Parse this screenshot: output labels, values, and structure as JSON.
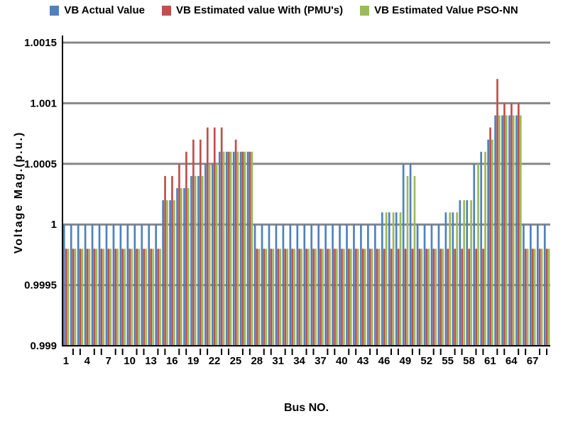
{
  "chart_data": {
    "type": "bar",
    "title": "",
    "xlabel": "Bus NO.",
    "ylabel": "Voltage Mag.(p.u.)",
    "ylim": [
      0.999,
      1.0015
    ],
    "yticks": [
      0.999,
      0.9995,
      1,
      1.0005,
      1.001,
      1.0015
    ],
    "ytick_labels": [
      "0.999",
      "0.9995",
      "1",
      "1.0005",
      "1.001",
      "1.0015"
    ],
    "x_label_every": 3,
    "grid": true,
    "legend_position": "top",
    "categories": [
      1,
      2,
      3,
      4,
      5,
      6,
      7,
      8,
      9,
      10,
      11,
      12,
      13,
      14,
      15,
      16,
      17,
      18,
      19,
      20,
      21,
      22,
      23,
      24,
      25,
      26,
      27,
      28,
      29,
      30,
      31,
      32,
      33,
      34,
      35,
      36,
      37,
      38,
      39,
      40,
      41,
      42,
      43,
      44,
      45,
      46,
      47,
      48,
      49,
      50,
      51,
      52,
      53,
      54,
      55,
      56,
      57,
      58,
      59,
      60,
      61,
      62,
      63,
      64,
      65,
      66,
      67,
      68,
      69
    ],
    "series": [
      {
        "name": "VB Actual Value",
        "color": "#4f81bd",
        "values": [
          1.0,
          1.0,
          1.0,
          1.0,
          1.0,
          1.0,
          1.0,
          1.0,
          1.0,
          1.0,
          1.0,
          1.0,
          1.0,
          1.0,
          1.0002,
          1.0002,
          1.0003,
          1.0003,
          1.0004,
          1.0004,
          1.0005,
          1.0005,
          1.0006,
          1.0006,
          1.0006,
          1.0006,
          1.0006,
          1.0,
          1.0,
          1.0,
          1.0,
          1.0,
          1.0,
          1.0,
          1.0,
          1.0,
          1.0,
          1.0,
          1.0,
          1.0,
          1.0,
          1.0,
          1.0,
          1.0,
          1.0,
          1.0001,
          1.0001,
          1.0001,
          1.0005,
          1.0005,
          1.0,
          1.0,
          1.0,
          1.0,
          1.0001,
          1.0001,
          1.0002,
          1.0002,
          1.0005,
          1.0006,
          1.0007,
          1.0009,
          1.0009,
          1.0009,
          1.0009,
          1.0,
          1.0,
          1.0,
          1.0
        ]
      },
      {
        "name": "VB Estimated value With (PMU's)",
        "color": "#c0504d",
        "values": [
          0.9998,
          0.9998,
          0.9998,
          0.9998,
          0.9998,
          0.9998,
          0.9998,
          0.9998,
          0.9998,
          0.9998,
          0.9998,
          0.9998,
          0.9998,
          0.9998,
          1.0004,
          1.0004,
          1.0005,
          1.0006,
          1.0007,
          1.0007,
          1.0008,
          1.0008,
          1.0008,
          1.0006,
          1.0007,
          1.0006,
          1.0006,
          0.9998,
          0.9998,
          0.9998,
          0.9998,
          0.9998,
          0.9998,
          0.9998,
          0.9998,
          0.9998,
          0.9998,
          0.9998,
          0.9998,
          0.9998,
          0.9998,
          0.9998,
          0.9998,
          0.9998,
          0.9998,
          0.9998,
          0.9998,
          0.9998,
          0.9998,
          0.9998,
          0.9998,
          0.9998,
          0.9998,
          0.9998,
          0.9998,
          0.9998,
          0.9998,
          0.9998,
          0.9998,
          0.9998,
          1.0008,
          1.0012,
          1.001,
          1.001,
          1.001,
          0.9998,
          0.9998,
          0.9998,
          0.9998
        ]
      },
      {
        "name": "VB Estimated Value PSO-NN",
        "color": "#9bbb59",
        "values": [
          0.9998,
          0.9998,
          0.9998,
          0.9998,
          0.9998,
          0.9998,
          0.9998,
          0.9998,
          0.9998,
          0.9998,
          0.9998,
          0.9998,
          0.9998,
          0.9998,
          1.0002,
          1.0002,
          1.0003,
          1.0003,
          1.0004,
          1.0004,
          1.0005,
          1.0005,
          1.0006,
          1.0006,
          1.0006,
          1.0006,
          1.0006,
          0.9998,
          0.9998,
          0.9998,
          0.9998,
          0.9998,
          0.9998,
          0.9998,
          0.9998,
          0.9998,
          0.9998,
          0.9998,
          0.9998,
          0.9998,
          0.9998,
          0.9998,
          0.9998,
          0.9998,
          0.9998,
          1.0001,
          1.0001,
          1.0001,
          1.0004,
          1.0004,
          0.9998,
          0.9998,
          0.9998,
          0.9998,
          1.0001,
          1.0001,
          1.0002,
          1.0002,
          1.0005,
          1.0006,
          1.0007,
          1.0009,
          1.0009,
          1.0009,
          1.0009,
          0.9998,
          0.9998,
          0.9998,
          0.9998
        ]
      }
    ]
  }
}
